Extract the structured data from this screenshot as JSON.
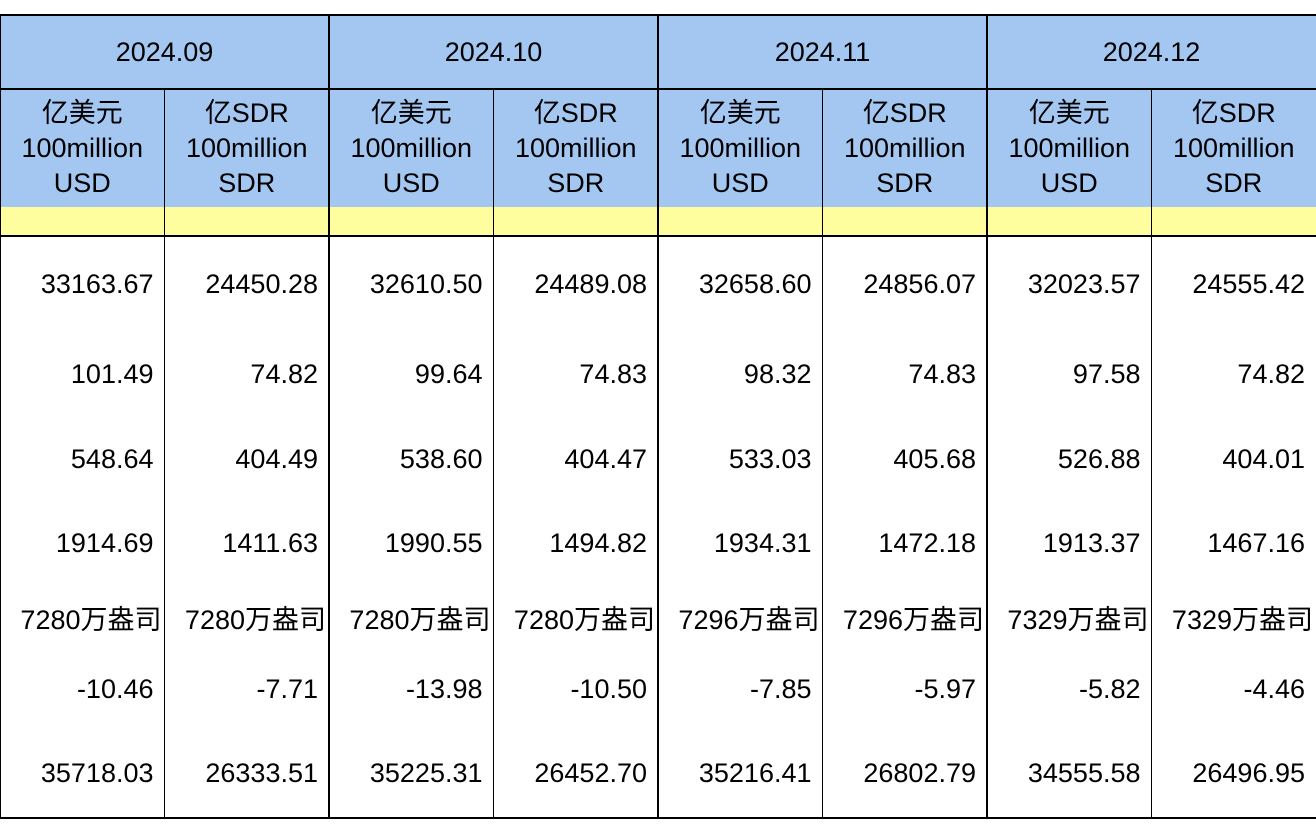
{
  "table": {
    "months": [
      "2024.09",
      "2024.10",
      "2024.11",
      "2024.12"
    ],
    "units": {
      "usd": [
        "亿美元",
        "100million",
        "USD"
      ],
      "sdr": [
        "亿SDR",
        "100million",
        "SDR"
      ]
    },
    "rows": [
      [
        "33163.67",
        "24450.28",
        "32610.50",
        "24489.08",
        "32658.60",
        "24856.07",
        "32023.57",
        "24555.42"
      ],
      [
        "101.49",
        "74.82",
        "99.64",
        "74.83",
        "98.32",
        "74.83",
        "97.58",
        "74.82"
      ],
      [
        "548.64",
        "404.49",
        "538.60",
        "404.47",
        "533.03",
        "405.68",
        "526.88",
        "404.01"
      ],
      [
        "1914.69",
        "1411.63",
        "1990.55",
        "1494.82",
        "1934.31",
        "1472.18",
        "1913.37",
        "1467.16"
      ],
      [
        "7280万盎司",
        "7280万盎司",
        "7280万盎司",
        "7280万盎司",
        "7296万盎司",
        "7296万盎司",
        "7329万盎司",
        "7329万盎司"
      ],
      [
        "-10.46",
        "-7.71",
        "-13.98",
        "-10.50",
        "-7.85",
        "-5.97",
        "-5.82",
        "-4.46"
      ],
      [
        "35718.03",
        "26333.51",
        "35225.31",
        "26452.70",
        "35216.41",
        "26802.79",
        "34555.58",
        "26496.95"
      ]
    ],
    "highlight_row_values": [
      "",
      "",
      "",
      "",
      "",
      "",
      "",
      ""
    ],
    "colors": {
      "header_blue": "#A4C7F2",
      "highlight_yellow": "#FEFE9E",
      "border": "#000000"
    }
  }
}
